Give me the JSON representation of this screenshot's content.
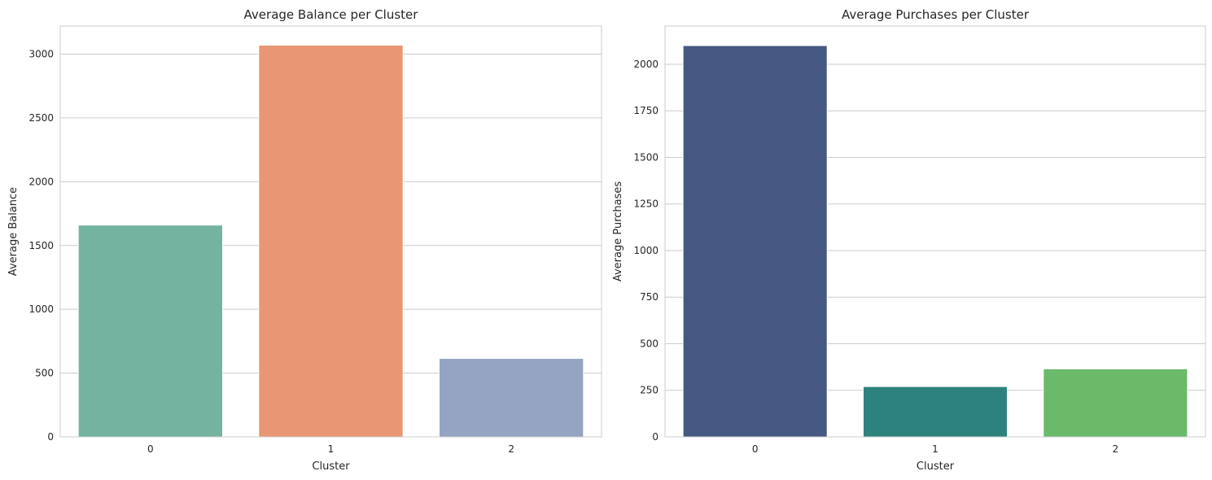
{
  "chart_data": [
    {
      "type": "bar",
      "title": "Average Balance per Cluster",
      "xlabel": "Cluster",
      "ylabel": "Average Balance",
      "categories": [
        "0",
        "1",
        "2"
      ],
      "values": [
        1660,
        3070,
        615
      ],
      "colors": [
        "#73b3a0",
        "#e89673",
        "#94a4c2"
      ],
      "ylim": [
        0,
        3220
      ],
      "yticks": [
        0,
        500,
        1000,
        1500,
        2000,
        2500,
        3000
      ],
      "grid": "y"
    },
    {
      "type": "bar",
      "title": "Average Purchases per Cluster",
      "xlabel": "Cluster",
      "ylabel": "Average Purchases",
      "categories": [
        "0",
        "1",
        "2"
      ],
      "values": [
        2100,
        270,
        365
      ],
      "colors": [
        "#455881",
        "#2e827d",
        "#6aba6a"
      ],
      "ylim": [
        0,
        2205
      ],
      "yticks": [
        0,
        250,
        500,
        750,
        1000,
        1250,
        1500,
        1750,
        2000
      ],
      "grid": "y"
    }
  ]
}
